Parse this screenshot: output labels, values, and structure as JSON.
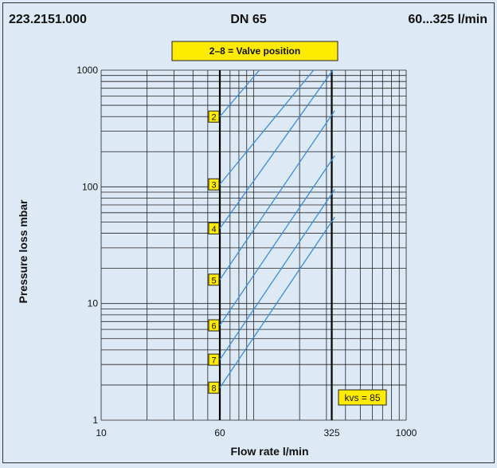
{
  "header": {
    "article": "223.2151.000",
    "dn": "DN 65",
    "range": "60...325 l/min"
  },
  "chart_data": {
    "type": "line",
    "legend_box": "2–8 = Valve position",
    "kvs_label": "kvs = 85",
    "xlabel": "Flow rate l/min",
    "ylabel": "Pressure loss mbar",
    "x_scale": "log",
    "y_scale": "log",
    "xlim": [
      10,
      1000
    ],
    "ylim": [
      1,
      1000
    ],
    "grid": true,
    "x_tick_labels": [
      {
        "value": 10,
        "label": "10"
      },
      {
        "value": 60,
        "label": "60"
      },
      {
        "value": 325,
        "label": "325"
      },
      {
        "value": 1000,
        "label": "1000"
      }
    ],
    "y_tick_labels": [
      {
        "value": 1,
        "label": "1"
      },
      {
        "value": 10,
        "label": "10"
      },
      {
        "value": 100,
        "label": "100"
      },
      {
        "value": 1000,
        "label": "1000"
      }
    ],
    "bold_vertical_lines": [
      60,
      325
    ],
    "series": [
      {
        "name": "2",
        "label_y": 400,
        "x": [
          60,
          109
        ],
        "y": [
          400,
          1000
        ]
      },
      {
        "name": "3",
        "label_y": 105,
        "x": [
          60,
          247
        ],
        "y": [
          105,
          1000
        ]
      },
      {
        "name": "4",
        "label_y": 44,
        "x": [
          60,
          330
        ],
        "y": [
          44,
          1000
        ]
      },
      {
        "name": "5",
        "label_y": 16,
        "x": [
          60,
          340
        ],
        "y": [
          16,
          450
        ]
      },
      {
        "name": "6",
        "label_y": 6.5,
        "x": [
          60,
          340
        ],
        "y": [
          6.5,
          185
        ]
      },
      {
        "name": "7",
        "label_y": 3.3,
        "x": [
          60,
          340
        ],
        "y": [
          3.3,
          95
        ]
      },
      {
        "name": "8",
        "label_y": 1.9,
        "x": [
          60,
          340
        ],
        "y": [
          1.9,
          55
        ]
      }
    ],
    "colors": {
      "line": "#3b8ed8",
      "label_fill": "#ffeb00",
      "background": "#dde9f4",
      "grid": "#222222"
    }
  }
}
